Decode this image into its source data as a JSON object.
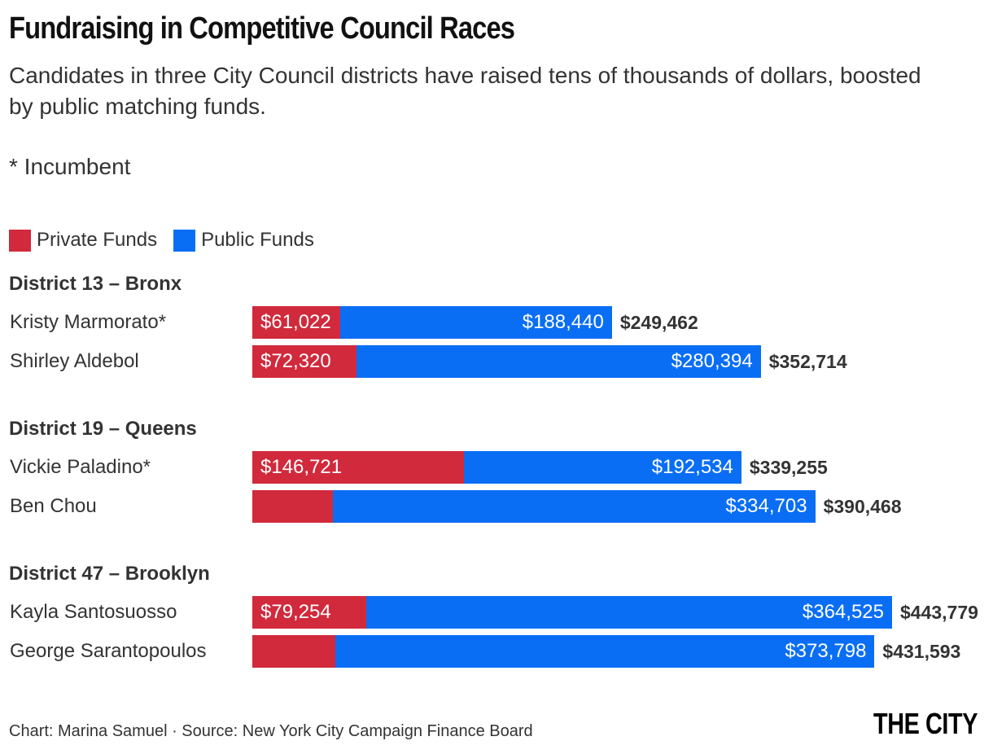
{
  "chart_data": {
    "type": "bar",
    "orientation": "horizontal",
    "stacked": true,
    "title": "Fundraising in Competitive Council Races",
    "subtitle": "Candidates in three City Council districts have raised tens of thousands of dollars, boosted by public matching funds.",
    "note": "* Incumbent",
    "legend": [
      {
        "name": "Private Funds",
        "color": "#d12a3c"
      },
      {
        "name": "Public Funds",
        "color": "#0a6ef5"
      }
    ],
    "legend_placement": "top-left",
    "grid": false,
    "xlim": [
      0,
      445000
    ],
    "groups": [
      {
        "label": "District 13 – Bronx",
        "candidates": [
          {
            "name": "Kristy Marmorato*",
            "private": 61022,
            "public": 188440,
            "private_label": "$61,022",
            "public_label": "$188,440",
            "total_label": "$249,462"
          },
          {
            "name": "Shirley Aldebol",
            "private": 72320,
            "public": 280394,
            "private_label": "$72,320",
            "public_label": "$280,394",
            "total_label": "$352,714"
          }
        ]
      },
      {
        "label": "District 19 – Queens",
        "candidates": [
          {
            "name": "Vickie Paladino*",
            "private": 146721,
            "public": 192534,
            "private_label": "$146,721",
            "public_label": "$192,534",
            "total_label": "$339,255"
          },
          {
            "name": "Ben Chou",
            "private": 55765,
            "public": 334703,
            "private_label": "",
            "public_label": "$334,703",
            "total_label": "$390,468"
          }
        ]
      },
      {
        "label": "District 47 – Brooklyn",
        "candidates": [
          {
            "name": "Kayla Santosuosso",
            "private": 79254,
            "public": 364525,
            "private_label": "$79,254",
            "public_label": "$364,525",
            "total_label": "$443,779"
          },
          {
            "name": "George Sarantopoulos",
            "private": 57795,
            "public": 373798,
            "private_label": "",
            "public_label": "$373,798",
            "total_label": "$431,593"
          }
        ]
      }
    ],
    "source": "Chart: Marina Samuel · Source: New York City Campaign Finance Board",
    "logo": "THE CITY"
  }
}
